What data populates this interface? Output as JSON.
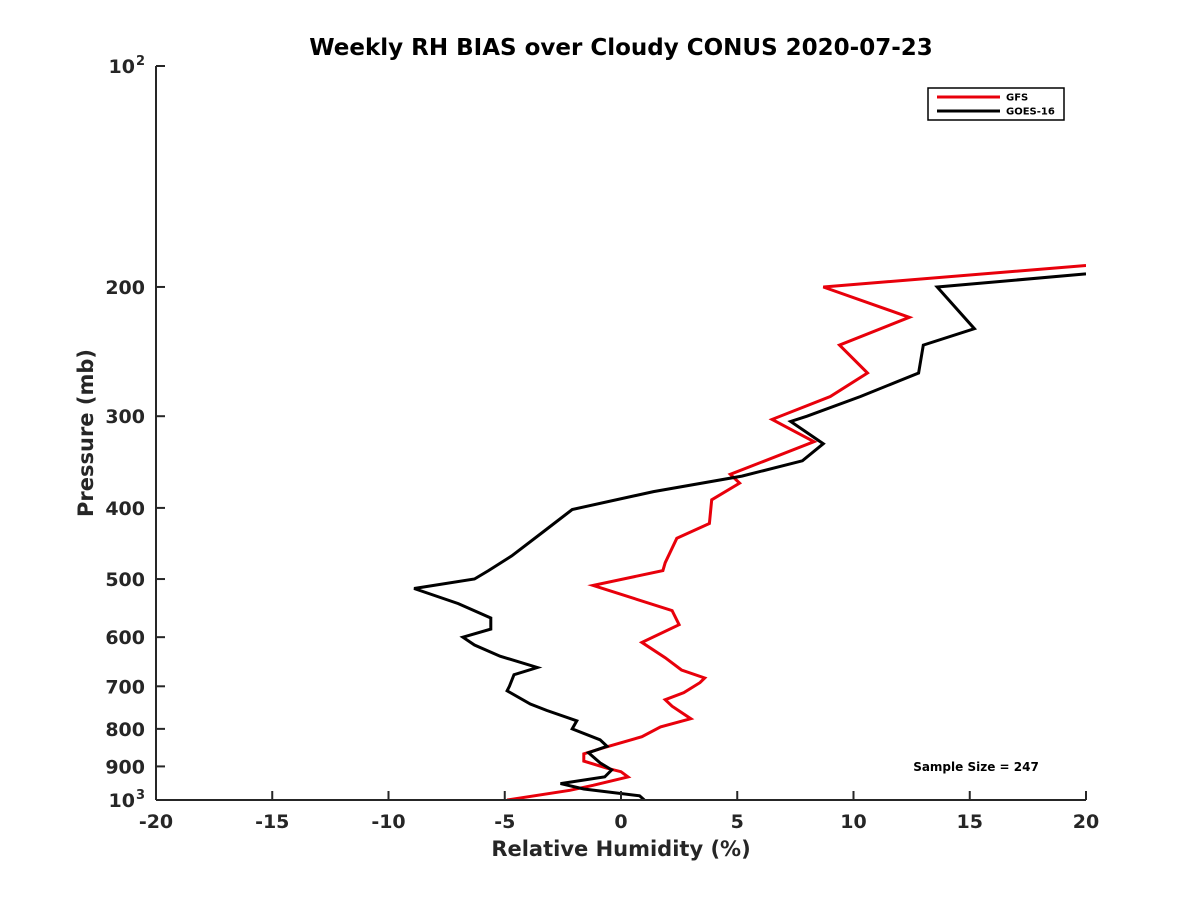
{
  "chart_data": {
    "type": "line",
    "title": "Weekly RH BIAS over Cloudy CONUS 2020-07-23",
    "xlabel": "Relative Humidity (%)",
    "ylabel": "Pressure (mb)",
    "xlim": [
      -20,
      20
    ],
    "ylim": [
      100,
      1000
    ],
    "y_scale": "log",
    "y_reversed": true,
    "x_ticks": [
      -20,
      -15,
      -10,
      -5,
      0,
      5,
      10,
      15,
      20
    ],
    "y_ticks": [
      {
        "value": 100,
        "label": "10",
        "sup": "2"
      },
      {
        "value": 200,
        "label": "200",
        "sup": ""
      },
      {
        "value": 300,
        "label": "300",
        "sup": ""
      },
      {
        "value": 400,
        "label": "400",
        "sup": ""
      },
      {
        "value": 500,
        "label": "500",
        "sup": ""
      },
      {
        "value": 600,
        "label": "600",
        "sup": ""
      },
      {
        "value": 700,
        "label": "700",
        "sup": ""
      },
      {
        "value": 800,
        "label": "800",
        "sup": ""
      },
      {
        "value": 900,
        "label": "900",
        "sup": ""
      },
      {
        "value": 1000,
        "label": "10",
        "sup": "3"
      }
    ],
    "grid": false,
    "legend_position": "top-right",
    "annotation": "Sample Size = 247",
    "series": [
      {
        "name": "GFS",
        "color": "#e8000b",
        "points": [
          [
            20,
            187
          ],
          [
            8.7,
            200
          ],
          [
            12.4,
            220
          ],
          [
            9.4,
            240
          ],
          [
            10.6,
            262
          ],
          [
            9.0,
            282
          ],
          [
            6.5,
            303
          ],
          [
            8.3,
            325
          ],
          [
            4.7,
            360
          ],
          [
            5.1,
            370
          ],
          [
            3.9,
            390
          ],
          [
            3.8,
            420
          ],
          [
            2.4,
            440
          ],
          [
            1.9,
            475
          ],
          [
            1.8,
            487
          ],
          [
            -1.2,
            510
          ],
          [
            2.2,
            552
          ],
          [
            2.5,
            577
          ],
          [
            0.9,
            610
          ],
          [
            1.9,
            640
          ],
          [
            2.6,
            665
          ],
          [
            3.6,
            682
          ],
          [
            3.4,
            692
          ],
          [
            2.7,
            714
          ],
          [
            1.9,
            730
          ],
          [
            2.2,
            745
          ],
          [
            3.0,
            775
          ],
          [
            1.7,
            795
          ],
          [
            0.9,
            820
          ],
          [
            -0.7,
            848
          ],
          [
            -1.6,
            865
          ],
          [
            -1.6,
            885
          ],
          [
            -0.6,
            905
          ],
          [
            0.0,
            915
          ],
          [
            0.3,
            930
          ],
          [
            -1.2,
            955
          ],
          [
            -2.2,
            970
          ],
          [
            -4.9,
            1000
          ]
        ]
      },
      {
        "name": "GOES-16",
        "color": "#000000",
        "points": [
          [
            20,
            192
          ],
          [
            13.6,
            200
          ],
          [
            15.2,
            228
          ],
          [
            13.0,
            240
          ],
          [
            12.8,
            262
          ],
          [
            10.3,
            282
          ],
          [
            8.0,
            300
          ],
          [
            7.3,
            305
          ],
          [
            8.7,
            327
          ],
          [
            7.8,
            345
          ],
          [
            5.2,
            362
          ],
          [
            1.4,
            380
          ],
          [
            -2.1,
            402
          ],
          [
            -3.3,
            430
          ],
          [
            -4.7,
            465
          ],
          [
            -5.7,
            487
          ],
          [
            -6.3,
            500
          ],
          [
            -8.9,
            515
          ],
          [
            -7.0,
            540
          ],
          [
            -5.6,
            565
          ],
          [
            -5.6,
            585
          ],
          [
            -6.8,
            600
          ],
          [
            -6.3,
            615
          ],
          [
            -5.2,
            637
          ],
          [
            -3.6,
            660
          ],
          [
            -4.6,
            675
          ],
          [
            -4.8,
            700
          ],
          [
            -4.9,
            710
          ],
          [
            -3.9,
            740
          ],
          [
            -3.2,
            755
          ],
          [
            -1.9,
            780
          ],
          [
            -2.1,
            800
          ],
          [
            -0.9,
            828
          ],
          [
            -0.6,
            845
          ],
          [
            -1.4,
            862
          ],
          [
            -0.9,
            890
          ],
          [
            -0.4,
            910
          ],
          [
            -0.7,
            930
          ],
          [
            -2.6,
            950
          ],
          [
            -1.6,
            966
          ],
          [
            0.8,
            987
          ],
          [
            1.0,
            1000
          ]
        ]
      }
    ]
  }
}
